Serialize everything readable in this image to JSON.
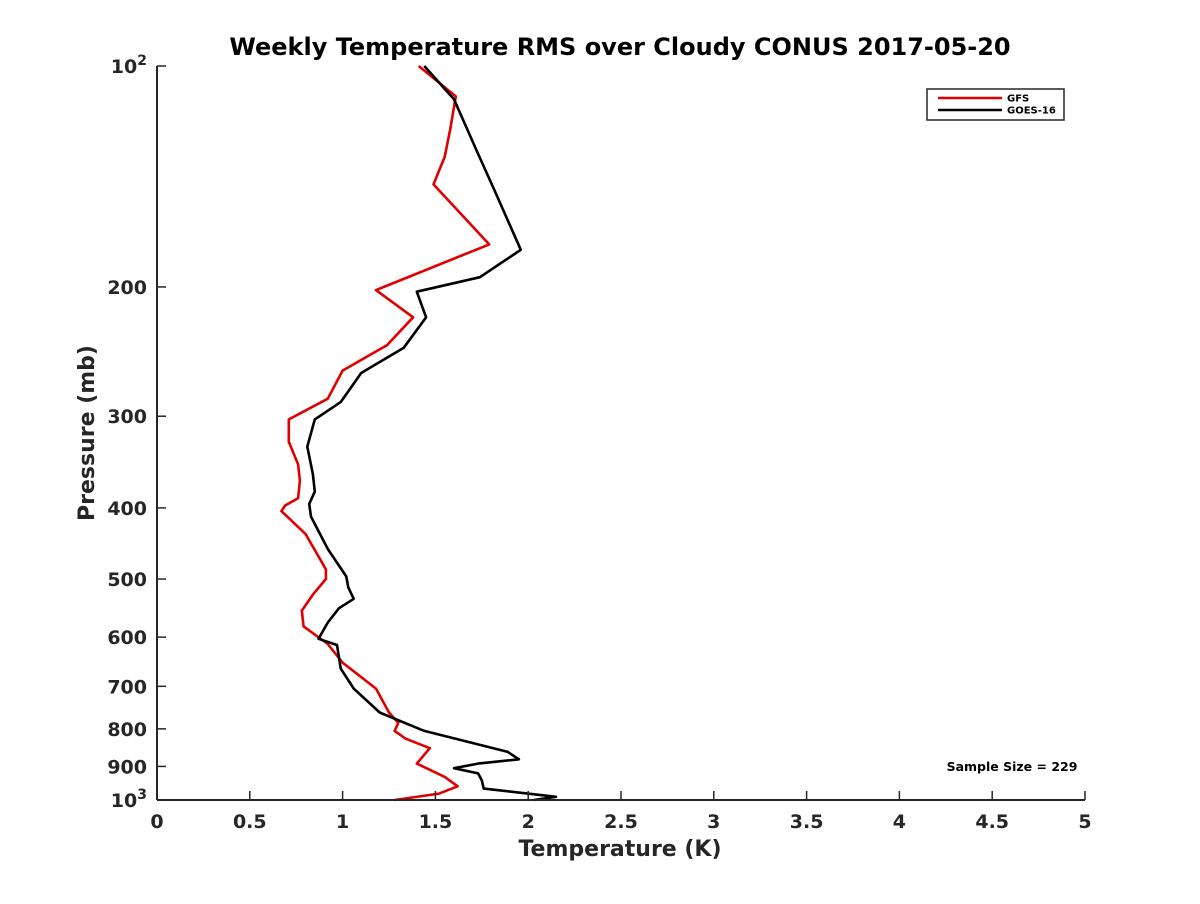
{
  "chart_data": {
    "type": "line",
    "title": "Weekly Temperature RMS over Cloudy CONUS 2017-05-20",
    "xlabel": "Temperature (K)",
    "ylabel": "Pressure (mb)",
    "xlim": [
      0,
      5
    ],
    "ylim": [
      100,
      1000
    ],
    "y_scale": "log",
    "y_reversed": true,
    "grid": false,
    "legend_position": "top-right",
    "x_ticks": [
      0,
      0.5,
      1,
      1.5,
      2,
      2.5,
      3,
      3.5,
      4,
      4.5,
      5
    ],
    "x_tick_labels": [
      "0",
      "0.5",
      "1",
      "1.5",
      "2",
      "2.5",
      "3",
      "3.5",
      "4",
      "4.5",
      "5"
    ],
    "y_ticks": [
      100,
      200,
      300,
      400,
      500,
      600,
      700,
      800,
      900,
      1000
    ],
    "y_tick_labels": [
      {
        "base": "10",
        "exp": "2"
      },
      {
        "base": "200",
        "exp": ""
      },
      {
        "base": "300",
        "exp": ""
      },
      {
        "base": "400",
        "exp": ""
      },
      {
        "base": "500",
        "exp": ""
      },
      {
        "base": "600",
        "exp": ""
      },
      {
        "base": "700",
        "exp": ""
      },
      {
        "base": "800",
        "exp": ""
      },
      {
        "base": "900",
        "exp": ""
      },
      {
        "base": "10",
        "exp": "3"
      }
    ],
    "annotation": "Sample Size = 229",
    "series": [
      {
        "name": "GFS",
        "color": "#e00000",
        "x": [
          1.41,
          1.61,
          1.58,
          1.55,
          1.49,
          1.79,
          1.18,
          1.38,
          1.24,
          1.0,
          0.92,
          0.71,
          0.71,
          0.76,
          0.77,
          0.76,
          0.69,
          0.67,
          0.8,
          0.91,
          0.91,
          0.84,
          0.78,
          0.79,
          0.92,
          1.0,
          1.18,
          1.25,
          1.3,
          1.28,
          1.34,
          1.47,
          1.4,
          1.55,
          1.62,
          1.52,
          1.28
        ],
        "y": [
          100,
          110,
          122,
          133,
          145,
          175,
          202,
          220,
          240,
          260,
          284,
          303,
          325,
          349,
          367,
          388,
          397,
          404,
          434,
          485,
          500,
          525,
          552,
          580,
          613,
          650,
          705,
          760,
          785,
          805,
          825,
          850,
          892,
          930,
          958,
          980,
          1003
        ]
      },
      {
        "name": "GOES-16",
        "color": "#000000",
        "x": [
          1.44,
          1.6,
          1.72,
          1.82,
          1.96,
          1.74,
          1.4,
          1.45,
          1.33,
          1.1,
          0.99,
          0.85,
          0.81,
          0.84,
          0.85,
          0.82,
          0.83,
          0.92,
          1.02,
          1.03,
          1.06,
          0.98,
          0.92,
          0.87,
          0.97,
          0.99,
          1.06,
          1.2,
          1.44,
          1.89,
          1.95,
          1.73,
          1.6,
          1.73,
          1.75,
          1.76,
          2.15,
          2.03
        ],
        "y": [
          100,
          111,
          130,
          148,
          178,
          194,
          203,
          220,
          242,
          262,
          287,
          303,
          330,
          360,
          380,
          395,
          411,
          455,
          496,
          513,
          532,
          548,
          573,
          603,
          615,
          662,
          705,
          760,
          805,
          860,
          880,
          892,
          905,
          920,
          940,
          965,
          990,
          1010
        ]
      }
    ]
  }
}
